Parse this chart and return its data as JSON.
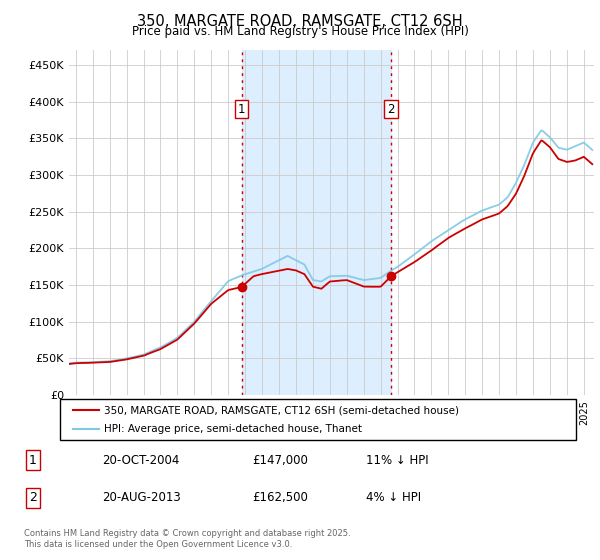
{
  "title": "350, MARGATE ROAD, RAMSGATE, CT12 6SH",
  "subtitle": "Price paid vs. HM Land Registry's House Price Index (HPI)",
  "ylabel_ticks": [
    "£0",
    "£50K",
    "£100K",
    "£150K",
    "£200K",
    "£250K",
    "£300K",
    "£350K",
    "£400K",
    "£450K"
  ],
  "ytick_vals": [
    0,
    50000,
    100000,
    150000,
    200000,
    250000,
    300000,
    350000,
    400000,
    450000
  ],
  "ylim": [
    0,
    470000
  ],
  "xlim_start": 1994.6,
  "xlim_end": 2025.6,
  "marker1_x": 2004.79,
  "marker2_x": 2013.62,
  "marker1_label": "1",
  "marker2_label": "2",
  "transaction1_date": "20-OCT-2004",
  "transaction1_price": "£147,000",
  "transaction1_note": "11% ↓ HPI",
  "transaction2_date": "20-AUG-2013",
  "transaction2_price": "£162,500",
  "transaction2_note": "4% ↓ HPI",
  "legend_line1": "350, MARGATE ROAD, RAMSGATE, CT12 6SH (semi-detached house)",
  "legend_line2": "HPI: Average price, semi-detached house, Thanet",
  "footer": "Contains HM Land Registry data © Crown copyright and database right 2025.\nThis data is licensed under the Open Government Licence v3.0.",
  "hpi_color": "#7ec8e3",
  "price_color": "#cc0000",
  "shade_color": "#ddeeff",
  "marker_box_color": "#cc0000",
  "grid_color": "#cccccc",
  "background_color": "#ffffff"
}
